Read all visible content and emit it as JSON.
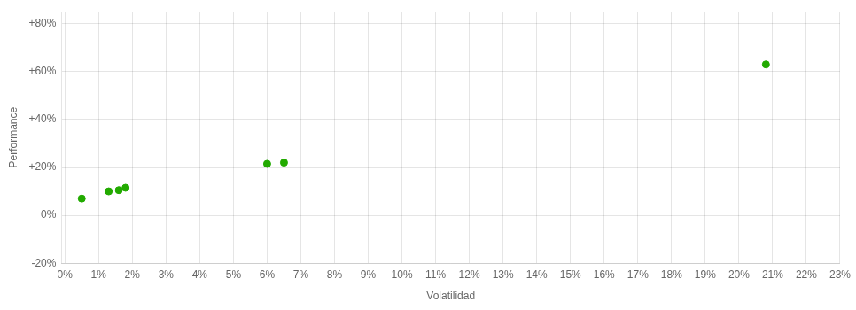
{
  "chart_data": {
    "type": "scatter",
    "xlabel": "Volatilidad",
    "ylabel": "Performance",
    "x": [
      0.005,
      0.013,
      0.016,
      0.018,
      0.06,
      0.065,
      0.208
    ],
    "values": [
      0.07,
      0.1,
      0.105,
      0.115,
      0.215,
      0.22,
      0.63
    ],
    "color": "#22aa00",
    "xlim": [
      -0.001,
      0.23
    ],
    "ylim": [
      -0.2,
      0.85
    ],
    "xticks": [
      {
        "value": 0.0,
        "label": "0%"
      },
      {
        "value": 0.01,
        "label": "1%"
      },
      {
        "value": 0.02,
        "label": "2%"
      },
      {
        "value": 0.03,
        "label": "3%"
      },
      {
        "value": 0.04,
        "label": "4%"
      },
      {
        "value": 0.05,
        "label": "5%"
      },
      {
        "value": 0.06,
        "label": "6%"
      },
      {
        "value": 0.07,
        "label": "7%"
      },
      {
        "value": 0.08,
        "label": "8%"
      },
      {
        "value": 0.09,
        "label": "9%"
      },
      {
        "value": 0.1,
        "label": "10%"
      },
      {
        "value": 0.11,
        "label": "11%"
      },
      {
        "value": 0.12,
        "label": "12%"
      },
      {
        "value": 0.13,
        "label": "13%"
      },
      {
        "value": 0.14,
        "label": "14%"
      },
      {
        "value": 0.15,
        "label": "15%"
      },
      {
        "value": 0.16,
        "label": "16%"
      },
      {
        "value": 0.17,
        "label": "17%"
      },
      {
        "value": 0.18,
        "label": "18%"
      },
      {
        "value": 0.19,
        "label": "19%"
      },
      {
        "value": 0.2,
        "label": "20%"
      },
      {
        "value": 0.21,
        "label": "21%"
      },
      {
        "value": 0.22,
        "label": "22%"
      },
      {
        "value": 0.23,
        "label": "23%"
      }
    ],
    "yticks": [
      {
        "value": -0.2,
        "label": "-20%"
      },
      {
        "value": 0.0,
        "label": "0%"
      },
      {
        "value": 0.2,
        "label": "+20%"
      },
      {
        "value": 0.4,
        "label": "+40%"
      },
      {
        "value": 0.6,
        "label": "+60%"
      },
      {
        "value": 0.8,
        "label": "+80%"
      }
    ],
    "grid": true
  }
}
